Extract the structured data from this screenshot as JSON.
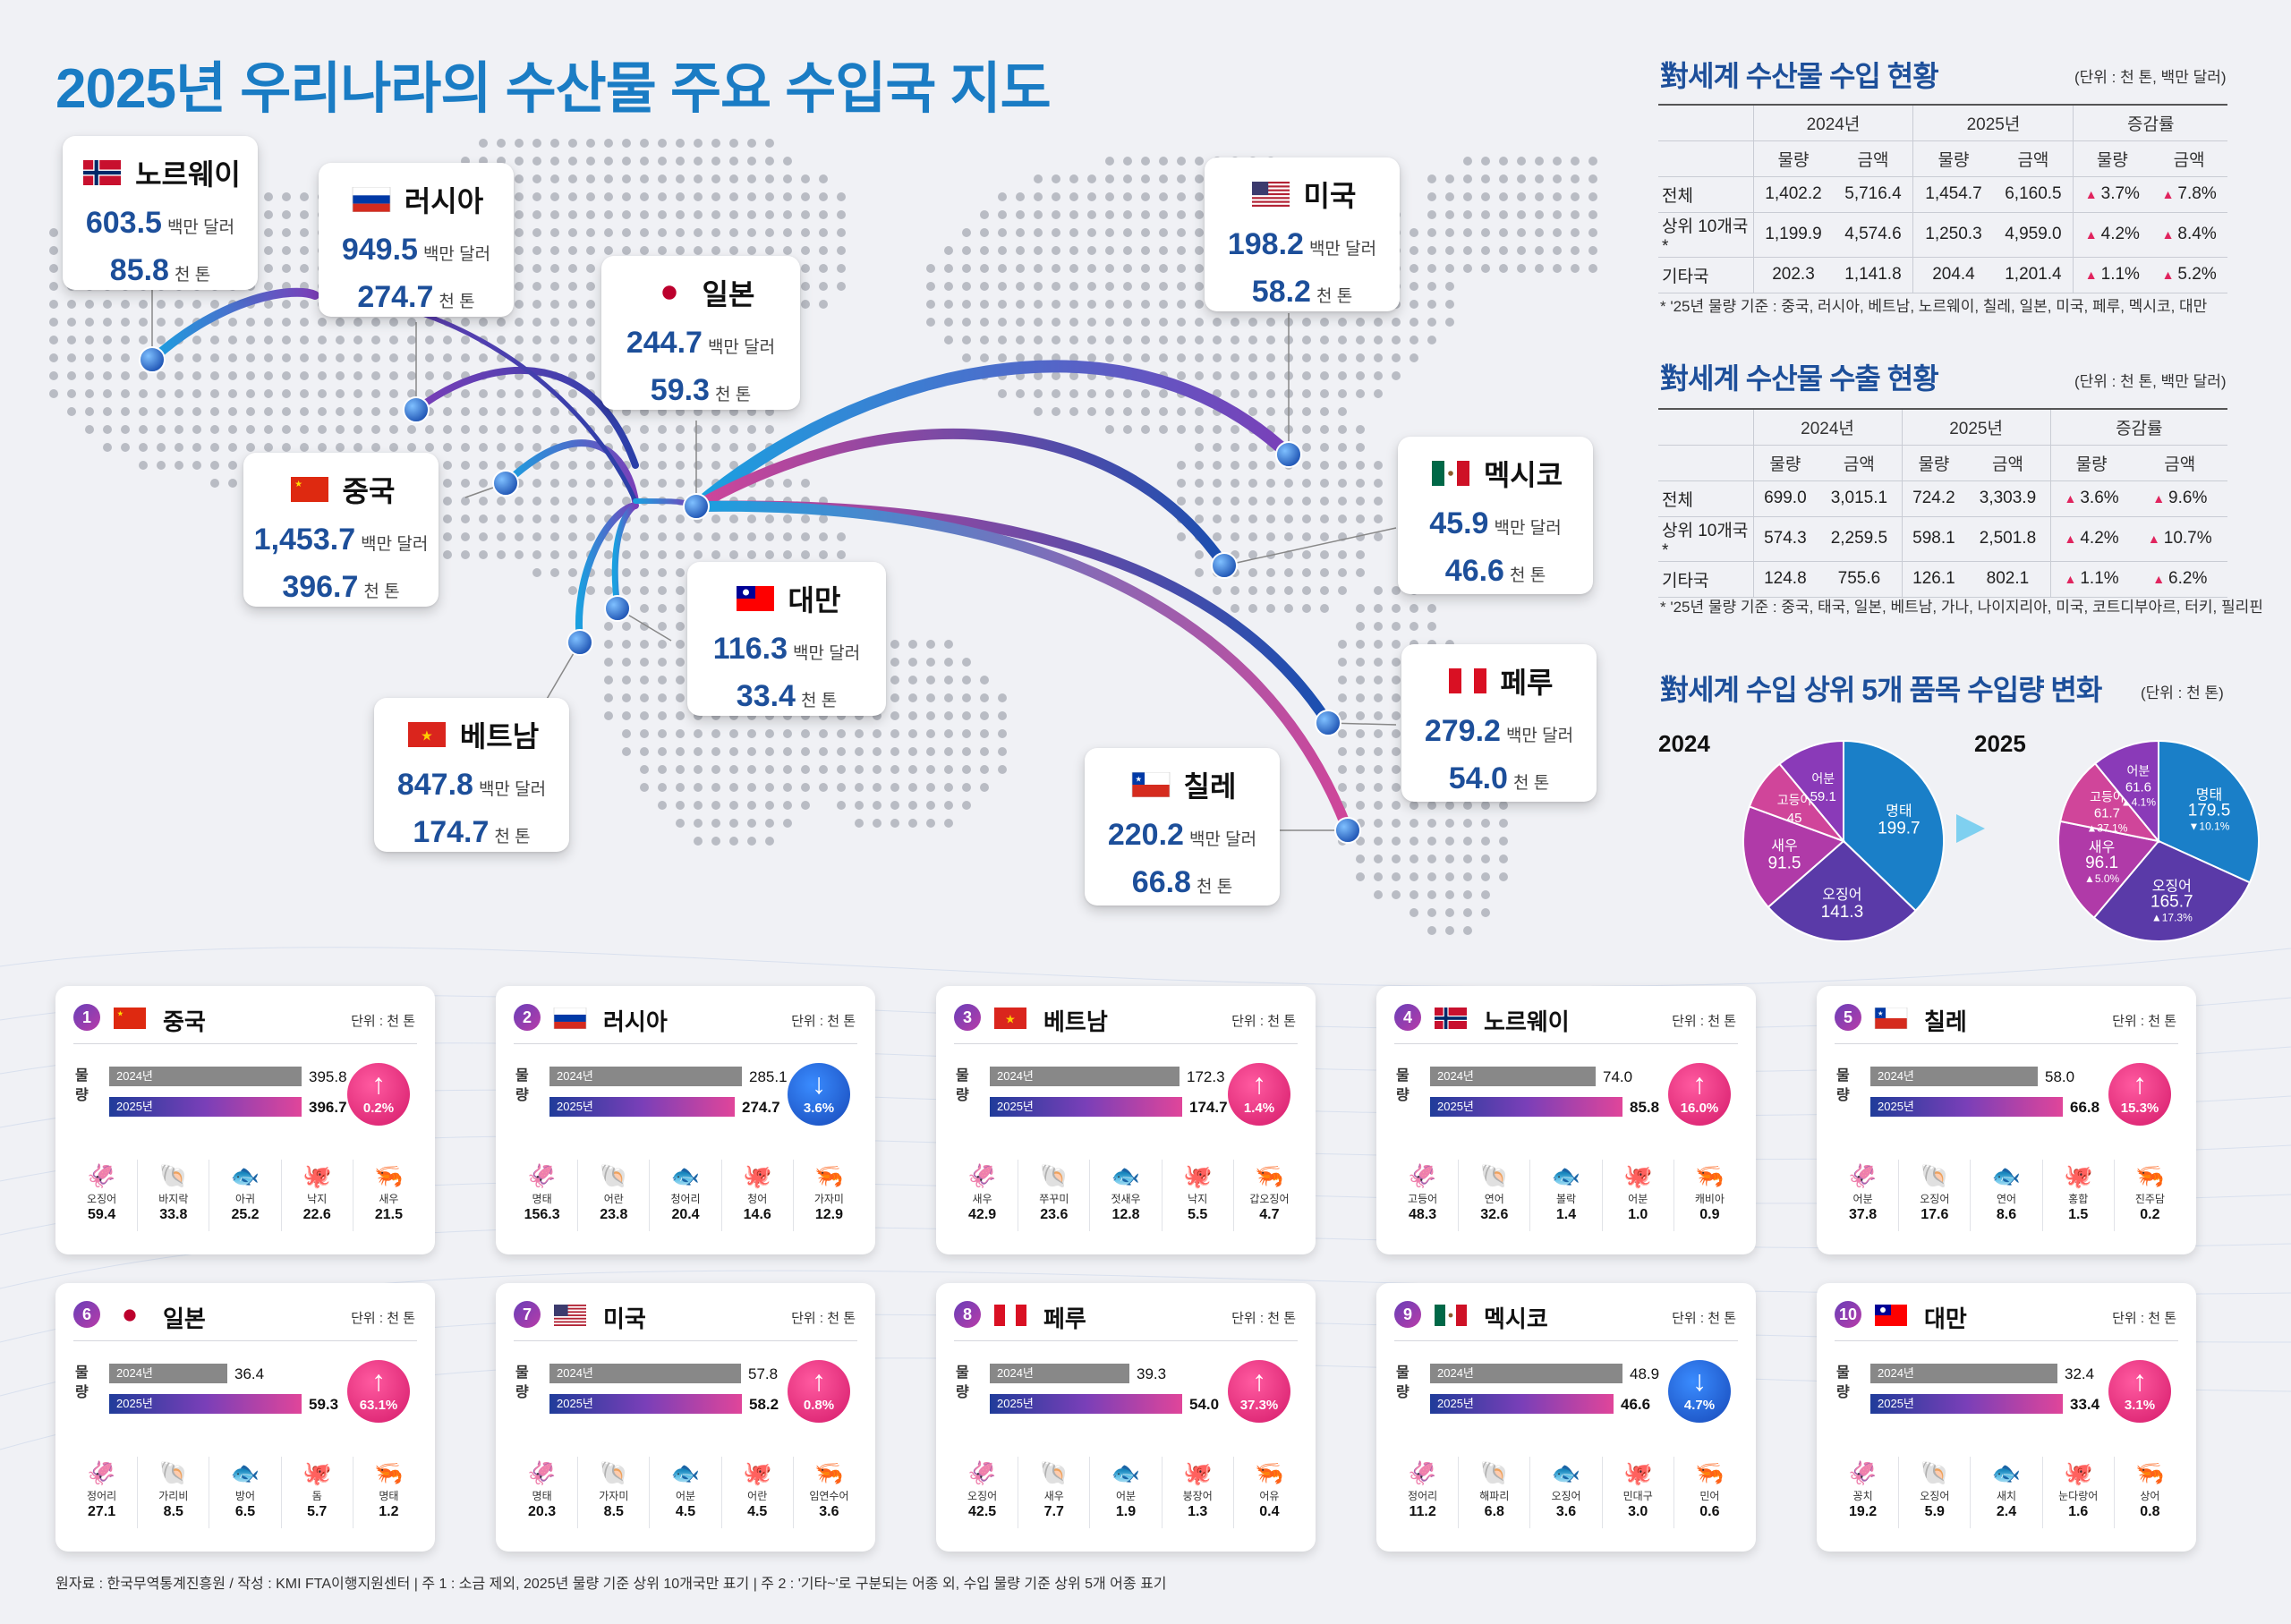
{
  "title": "2025년 우리나라의 수산물 주요 수입국 지도",
  "map_cards": [
    {
      "key": "norway",
      "name": "노르웨이",
      "usd": "603.5",
      "usd_unit": "백만 달러",
      "ton": "85.8",
      "ton_unit": "천 톤",
      "flag": "norway"
    },
    {
      "key": "russia",
      "name": "러시아",
      "usd": "949.5",
      "usd_unit": "백만 달러",
      "ton": "274.7",
      "ton_unit": "천 톤",
      "flag": "russia"
    },
    {
      "key": "japan",
      "name": "일본",
      "usd": "244.7",
      "usd_unit": "백만 달러",
      "ton": "59.3",
      "ton_unit": "천 톤",
      "flag": "japan"
    },
    {
      "key": "china",
      "name": "중국",
      "usd": "1,453.7",
      "usd_unit": "백만 달러",
      "ton": "396.7",
      "ton_unit": "천 톤",
      "flag": "china"
    },
    {
      "key": "taiwan",
      "name": "대만",
      "usd": "116.3",
      "usd_unit": "백만 달러",
      "ton": "33.4",
      "ton_unit": "천 톤",
      "flag": "taiwan"
    },
    {
      "key": "vietnam",
      "name": "베트남",
      "usd": "847.8",
      "usd_unit": "백만 달러",
      "ton": "174.7",
      "ton_unit": "천 톤",
      "flag": "vietnam"
    },
    {
      "key": "usa",
      "name": "미국",
      "usd": "198.2",
      "usd_unit": "백만 달러",
      "ton": "58.2",
      "ton_unit": "천 톤",
      "flag": "usa"
    },
    {
      "key": "mexico",
      "name": "멕시코",
      "usd": "45.9",
      "usd_unit": "백만 달러",
      "ton": "46.6",
      "ton_unit": "천 톤",
      "flag": "mexico"
    },
    {
      "key": "peru",
      "name": "페루",
      "usd": "279.2",
      "usd_unit": "백만 달러",
      "ton": "54.0",
      "ton_unit": "천 톤",
      "flag": "peru"
    },
    {
      "key": "chile",
      "name": "칠레",
      "usd": "220.2",
      "usd_unit": "백만 달러",
      "ton": "66.8",
      "ton_unit": "천 톤",
      "flag": "chile"
    }
  ],
  "import_table": {
    "title": "對세계 수산물 수입 현황",
    "unit": "(단위 : 천 톤, 백만 달러)",
    "years": [
      "2024년",
      "2025년",
      "증감률"
    ],
    "cols": [
      "물량",
      "금액",
      "물량",
      "금액",
      "물량",
      "금액"
    ],
    "rows": [
      {
        "label": "전체",
        "v": [
          "1,402.2",
          "5,716.4",
          "1,454.7",
          "6,160.5",
          "3.7%",
          "7.8%"
        ]
      },
      {
        "label": "상위 10개국*",
        "v": [
          "1,199.9",
          "4,574.6",
          "1,250.3",
          "4,959.0",
          "4.2%",
          "8.4%"
        ]
      },
      {
        "label": "기타국",
        "v": [
          "202.3",
          "1,141.8",
          "204.4",
          "1,201.4",
          "1.1%",
          "5.2%"
        ]
      }
    ],
    "note": "* '25년 물량 기준 : 중국, 러시아, 베트남, 노르웨이, 칠레, 일본, 미국, 페루, 멕시코, 대만"
  },
  "export_table": {
    "title": "對세계 수산물 수출 현황",
    "unit": "(단위 : 천 톤, 백만 달러)",
    "years": [
      "2024년",
      "2025년",
      "증감률"
    ],
    "cols": [
      "물량",
      "금액",
      "물량",
      "금액",
      "물량",
      "금액"
    ],
    "rows": [
      {
        "label": "전체",
        "v": [
          "699.0",
          "3,015.1",
          "724.2",
          "3,303.9",
          "3.6%",
          "9.6%"
        ]
      },
      {
        "label": "상위 10개국*",
        "v": [
          "574.3",
          "2,259.5",
          "598.1",
          "2,501.8",
          "4.2%",
          "10.7%"
        ]
      },
      {
        "label": "기타국",
        "v": [
          "124.8",
          "755.6",
          "126.1",
          "802.1",
          "1.1%",
          "6.2%"
        ]
      }
    ],
    "note": "* '25년 물량 기준 : 중국, 태국, 일본, 베트남, 가나, 나이지리아, 미국, 코트디부아르, 터키, 필리핀"
  },
  "pie_section": {
    "title": "對세계 수입 상위 5개 품목 수입량 변화",
    "unit": "(단위 : 천 톤)"
  },
  "chart_data": [
    {
      "type": "pie",
      "title": "2024",
      "series": [
        {
          "name": "명태",
          "value": 199.7,
          "color": "#1a7fc8"
        },
        {
          "name": "오징어",
          "value": 141.3,
          "color": "#5a3aa8"
        },
        {
          "name": "새우",
          "value": 91.5,
          "color": "#b03aa8"
        },
        {
          "name": "고등어",
          "value": 45.0,
          "color": "#d0459a"
        },
        {
          "name": "어분",
          "value": 59.1,
          "color": "#8a3ab8"
        }
      ]
    },
    {
      "type": "pie",
      "title": "2025",
      "series": [
        {
          "name": "명태",
          "value": 179.5,
          "change": "▼10.1%",
          "color": "#1a7fc8"
        },
        {
          "name": "오징어",
          "value": 165.7,
          "change": "▲17.3%",
          "color": "#5a3aa8"
        },
        {
          "name": "새우",
          "value": 96.1,
          "change": "▲5.0%",
          "color": "#b03aa8"
        },
        {
          "name": "고등어",
          "value": 61.7,
          "change": "▲37.1%",
          "color": "#d0459a"
        },
        {
          "name": "어분",
          "value": 61.6,
          "change": "▲4.1%",
          "color": "#8a3ab8"
        }
      ]
    }
  ],
  "cards_common": {
    "unit": "단위 : 천 톤",
    "qty_label": "물량",
    "y2024": "2024년",
    "y2025": "2025년"
  },
  "cards": [
    {
      "rank": "1",
      "name": "중국",
      "flag": "china",
      "v2024": "395.8",
      "v2025": "396.7",
      "f2024": 0.9977,
      "f2025": 1,
      "dir": "up",
      "pct": "0.2",
      "items": [
        [
          "오징어",
          "59.4"
        ],
        [
          "바지락",
          "33.8"
        ],
        [
          "아귀",
          "25.2"
        ],
        [
          "낙지",
          "22.6"
        ],
        [
          "새우",
          "21.5"
        ]
      ]
    },
    {
      "rank": "2",
      "name": "러시아",
      "flag": "russia",
      "v2024": "285.1",
      "v2025": "274.7",
      "f2024": 1,
      "f2025": 0.9635,
      "dir": "down",
      "pct": "3.6",
      "items": [
        [
          "명태",
          "156.3"
        ],
        [
          "어란",
          "23.8"
        ],
        [
          "청어리",
          "20.4"
        ],
        [
          "청어",
          "14.6"
        ],
        [
          "가자미",
          "12.9"
        ]
      ]
    },
    {
      "rank": "3",
      "name": "베트남",
      "flag": "vietnam",
      "v2024": "172.3",
      "v2025": "174.7",
      "f2024": 0.9863,
      "f2025": 1,
      "dir": "up",
      "pct": "1.4",
      "items": [
        [
          "새우",
          "42.9"
        ],
        [
          "쭈꾸미",
          "23.6"
        ],
        [
          "젓새우",
          "12.8"
        ],
        [
          "낙지",
          "5.5"
        ],
        [
          "갑오징어",
          "4.7"
        ]
      ]
    },
    {
      "rank": "4",
      "name": "노르웨이",
      "flag": "norway",
      "v2024": "74.0",
      "v2025": "85.8",
      "f2024": 0.8625,
      "f2025": 1,
      "dir": "up",
      "pct": "16.0",
      "items": [
        [
          "고등어",
          "48.3"
        ],
        [
          "연어",
          "32.6"
        ],
        [
          "볼락",
          "1.4"
        ],
        [
          "어분",
          "1.0"
        ],
        [
          "캐비아",
          "0.9"
        ]
      ]
    },
    {
      "rank": "5",
      "name": "칠레",
      "flag": "chile",
      "v2024": "58.0",
      "v2025": "66.8",
      "f2024": 0.8683,
      "f2025": 1,
      "dir": "up",
      "pct": "15.3",
      "items": [
        [
          "어분",
          "37.8"
        ],
        [
          "오징어",
          "17.6"
        ],
        [
          "연어",
          "8.6"
        ],
        [
          "홍합",
          "1.5"
        ],
        [
          "진주담",
          "0.2"
        ]
      ]
    },
    {
      "rank": "6",
      "name": "일본",
      "flag": "japan",
      "v2024": "36.4",
      "v2025": "59.3",
      "f2024": 0.6138,
      "f2025": 1,
      "dir": "up",
      "pct": "63.1",
      "items": [
        [
          "정어리",
          "27.1"
        ],
        [
          "가리비",
          "8.5"
        ],
        [
          "방어",
          "6.5"
        ],
        [
          "돔",
          "5.7"
        ],
        [
          "명태",
          "1.2"
        ]
      ]
    },
    {
      "rank": "7",
      "name": "미국",
      "flag": "usa",
      "v2024": "57.8",
      "v2025": "58.2",
      "f2024": 0.9931,
      "f2025": 1,
      "dir": "up",
      "pct": "0.8",
      "items": [
        [
          "명태",
          "20.3"
        ],
        [
          "가자미",
          "8.5"
        ],
        [
          "어분",
          "4.5"
        ],
        [
          "어란",
          "4.5"
        ],
        [
          "임연수어",
          "3.6"
        ]
      ]
    },
    {
      "rank": "8",
      "name": "페루",
      "flag": "peru",
      "v2024": "39.3",
      "v2025": "54.0",
      "f2024": 0.7278,
      "f2025": 1,
      "dir": "up",
      "pct": "37.3",
      "items": [
        [
          "오징어",
          "42.5"
        ],
        [
          "새우",
          "7.7"
        ],
        [
          "어분",
          "1.9"
        ],
        [
          "붕장어",
          "1.3"
        ],
        [
          "어유",
          "0.4"
        ]
      ]
    },
    {
      "rank": "9",
      "name": "멕시코",
      "flag": "mexico",
      "v2024": "48.9",
      "v2025": "46.6",
      "f2024": 1,
      "f2025": 0.953,
      "dir": "down",
      "pct": "4.7",
      "items": [
        [
          "정어리",
          "11.2"
        ],
        [
          "해파리",
          "6.8"
        ],
        [
          "오징어",
          "3.6"
        ],
        [
          "민대구",
          "3.0"
        ],
        [
          "민어",
          "0.6"
        ]
      ]
    },
    {
      "rank": "10",
      "name": "대만",
      "flag": "taiwan",
      "v2024": "32.4",
      "v2025": "33.4",
      "f2024": 0.97,
      "f2025": 1,
      "dir": "up",
      "pct": "3.1",
      "items": [
        [
          "꽁치",
          "19.2"
        ],
        [
          "오징어",
          "5.9"
        ],
        [
          "새치",
          "2.4"
        ],
        [
          "눈다랑어",
          "1.6"
        ],
        [
          "상어",
          "0.8"
        ]
      ]
    }
  ],
  "footer": "원자료 : 한국무역통계진흥원 / 작성 : KMI FTA이행지원센터  |  주 1 : 소금 제외, 2025년 물량 기준 상위 10개국만 표기  |  주 2 : '기타~'로 구분되는 어종 외, 수입 물량 기준 상위 5개 어종 표기"
}
